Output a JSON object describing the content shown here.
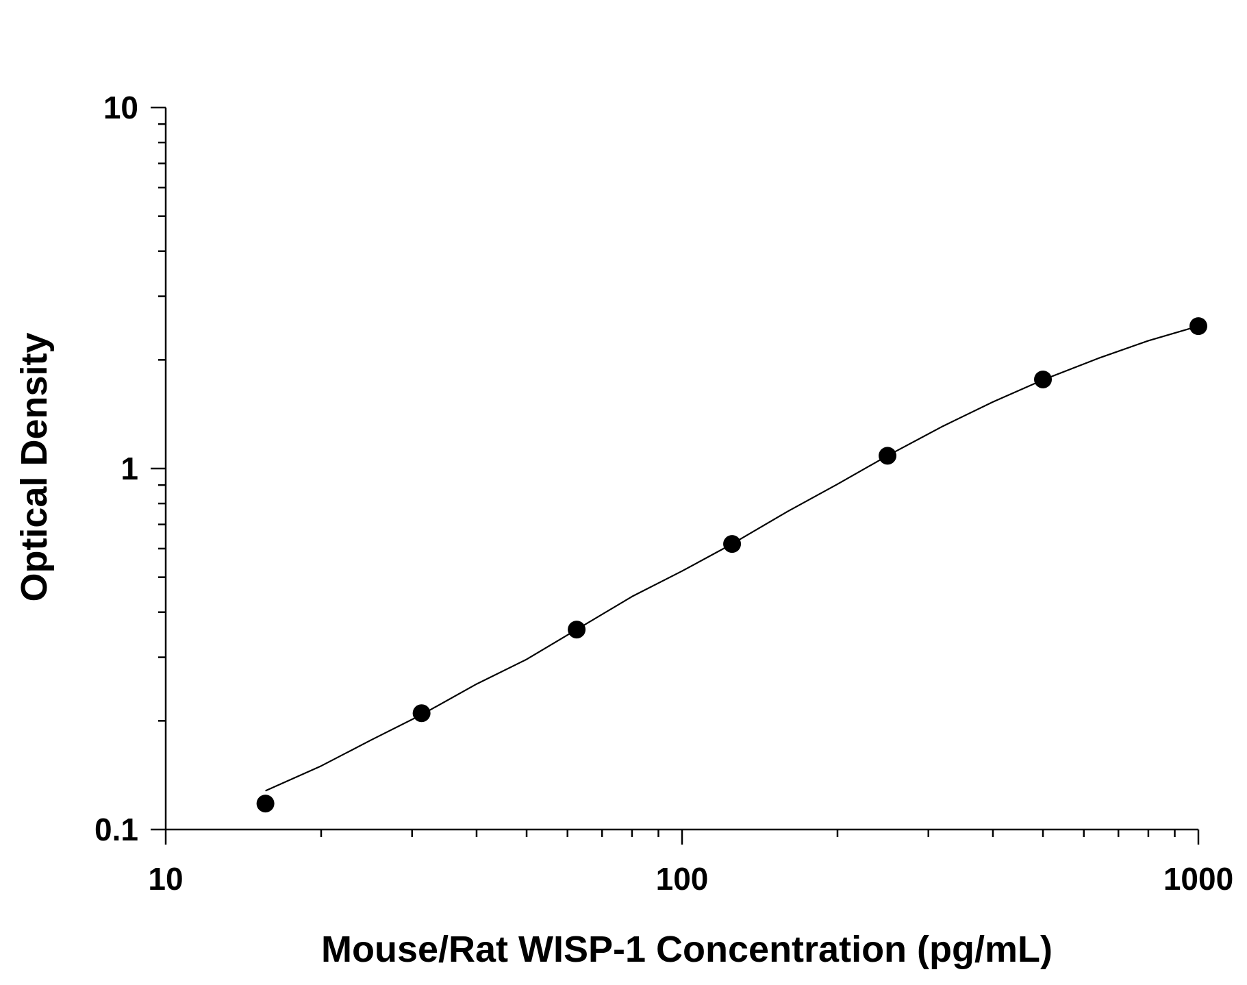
{
  "chart_data": {
    "type": "scatter",
    "title": "",
    "xlabel": "Mouse/Rat WISP-1 Concentration (pg/mL)",
    "ylabel": "Optical Density",
    "xscale": "log",
    "yscale": "log",
    "xlim": [
      10,
      1000
    ],
    "ylim": [
      0.1,
      10
    ],
    "x_ticks": [
      "10",
      "100",
      "1000"
    ],
    "y_ticks": [
      "0.1",
      "1",
      "10"
    ],
    "grid": false,
    "legend": "none",
    "series": [
      {
        "x": [
          15.6,
          31.3,
          62.5,
          125,
          250,
          500,
          1000
        ],
        "y": [
          0.118,
          0.21,
          0.358,
          0.618,
          1.085,
          1.765,
          2.48
        ]
      }
    ],
    "fit_curve": {
      "type": "smooth fit",
      "x": [
        15.6,
        20,
        25,
        31.3,
        40,
        50,
        62.5,
        80,
        100,
        125,
        160,
        200,
        250,
        320,
        400,
        500,
        640,
        800,
        1000
      ],
      "y": [
        0.128,
        0.15,
        0.177,
        0.208,
        0.253,
        0.296,
        0.358,
        0.442,
        0.52,
        0.618,
        0.76,
        0.905,
        1.085,
        1.31,
        1.53,
        1.76,
        2.02,
        2.26,
        2.48
      ]
    },
    "colors": {
      "marker": "#000000",
      "line": "#000000",
      "axis": "#000000"
    }
  }
}
